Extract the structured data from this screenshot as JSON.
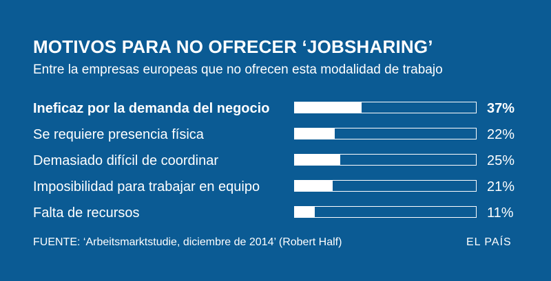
{
  "chart_data": {
    "type": "bar",
    "orientation": "horizontal",
    "title": "MOTIVOS PARA NO OFRECER ‘JOBSHARING’",
    "subtitle": "Entre la empresas europeas que no ofrecen esta modalidad de trabajo",
    "categories": [
      "Ineficaz por la demanda del negocio",
      "Se requiere presencia física",
      "Demasiado difícil de coordinar",
      "Imposibilidad para trabajar en equipo",
      "Falta de recursos"
    ],
    "values": [
      37,
      22,
      25,
      21,
      11
    ],
    "value_labels": [
      "37%",
      "22%",
      "25%",
      "21%",
      "11%"
    ],
    "xlim": [
      0,
      100
    ],
    "highlight_index": 0,
    "grid": false,
    "legend": "none",
    "source": "FUENTE: ‘Arbeitsmarktstudie, diciembre de 2014’ (Robert Half)",
    "brand": "EL PAÍS",
    "colors": {
      "background": "#0b5b94",
      "bar": "#ffffff",
      "text": "#ffffff"
    }
  }
}
